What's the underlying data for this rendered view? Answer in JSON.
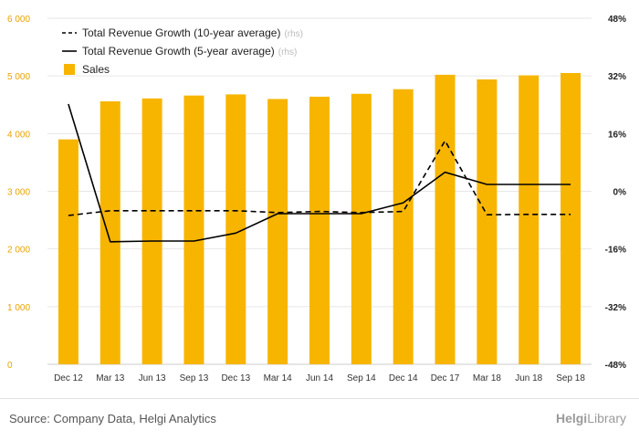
{
  "chart_data": {
    "type": "bar+line",
    "categories": [
      "Dec 12",
      "Mar 13",
      "Jun 13",
      "Sep 13",
      "Dec 13",
      "Mar 14",
      "Jun 14",
      "Sep 14",
      "Dec 14",
      "Dec 17",
      "Mar 18",
      "Jun 18",
      "Sep 18"
    ],
    "left_axis": {
      "ylim": [
        0,
        6000
      ],
      "ticks": [
        0,
        1000,
        2000,
        3000,
        4000,
        5000,
        6000
      ],
      "tick_labels": [
        "0",
        "1 000",
        "2 000",
        "3 000",
        "4 000",
        "5 000",
        "6 000"
      ]
    },
    "right_axis": {
      "ylim": [
        -48,
        48
      ],
      "ticks": [
        -48,
        -32,
        -16,
        0,
        16,
        32,
        48
      ],
      "tick_labels": [
        "-48%",
        "-32%",
        "-16%",
        "0%",
        "16%",
        "32%",
        "48%"
      ]
    },
    "series": [
      {
        "name": "Sales",
        "kind": "bar",
        "axis": "left",
        "color": "#f7b500",
        "values": [
          3900,
          4560,
          4610,
          4660,
          4680,
          4600,
          4640,
          4690,
          4770,
          5020,
          4940,
          5010,
          5050
        ]
      },
      {
        "name": "Total Revenue Growth (10-year average)",
        "kind": "line",
        "dash": true,
        "axis": "right",
        "color": "#000000",
        "values": [
          -6.7,
          -5.4,
          -5.4,
          -5.4,
          -5.4,
          -5.9,
          -5.6,
          -5.9,
          -5.6,
          14.0,
          -6.5,
          -6.4,
          -6.4
        ]
      },
      {
        "name": "Total Revenue Growth (5-year average)",
        "kind": "line",
        "dash": false,
        "axis": "right",
        "color": "#000000",
        "values": [
          24.2,
          -14.0,
          -13.8,
          -13.8,
          -11.6,
          -6.2,
          -6.2,
          -6.2,
          -3.2,
          5.3,
          1.9,
          1.9,
          1.9
        ]
      }
    ],
    "legend": {
      "placement": "top-left",
      "rhs_tag": "(rhs)",
      "entries": [
        {
          "label": "Total Revenue Growth (10-year average)",
          "rhs": true,
          "style": "dashed"
        },
        {
          "label": "Total Revenue Growth (5-year average)",
          "rhs": true,
          "style": "solid"
        },
        {
          "label": "Sales",
          "rhs": false,
          "style": "box"
        }
      ]
    },
    "grid": "horizontal"
  },
  "footer": {
    "source": "Source: Company Data, Helgi Analytics",
    "logo_brand": "Helgi",
    "logo_suffix": "Library"
  }
}
